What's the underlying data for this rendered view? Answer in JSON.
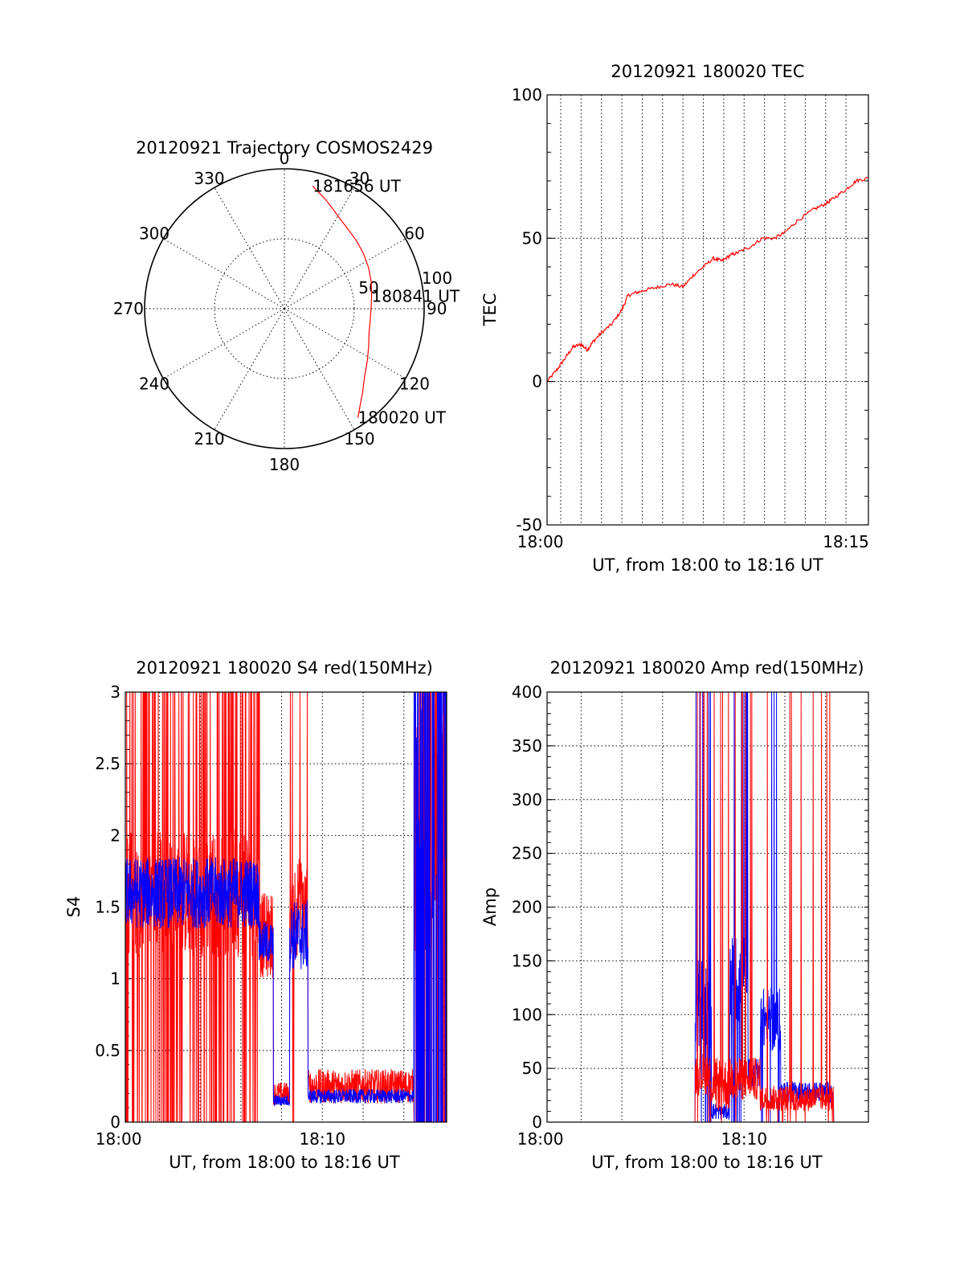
{
  "chart_data": [
    {
      "id": "trajectory",
      "type": "polar",
      "title": "20120921 Trajectory COSMOS2429",
      "azimuth_labels": [
        "0",
        "30",
        "60",
        "90",
        "120",
        "150",
        "180",
        "210",
        "240",
        "270",
        "300",
        "330"
      ],
      "radius_labels": [
        "50",
        "100"
      ],
      "rlim": [
        0,
        100
      ],
      "series_color": "#ff0000",
      "trajectory": {
        "azimuth": [
          13,
          16,
          20,
          25,
          31,
          38,
          46,
          55,
          64,
          73,
          82,
          90,
          98,
          106,
          114,
          122,
          130,
          137,
          142,
          146
        ],
        "radius": [
          90,
          87,
          84,
          80,
          76,
          73,
          71,
          69,
          67,
          65,
          63,
          62,
          62,
          63,
          66,
          70,
          75,
          82,
          88,
          94
        ]
      },
      "annotations": [
        {
          "text": "181656 UT",
          "azimuth": 13,
          "radius": 90
        },
        {
          "text": "180841 UT",
          "azimuth": 82,
          "radius": 63
        },
        {
          "text": "180020 UT",
          "azimuth": 146,
          "radius": 94
        }
      ]
    },
    {
      "id": "tec",
      "type": "line",
      "title": "20120921 180020 TEC",
      "xlabel": "UT, from 18:00 to 18:16 UT",
      "ylabel": "TEC",
      "xlim": [
        0.33,
        16.1
      ],
      "ylim": [
        -50,
        100
      ],
      "x_ticks": [
        {
          "value": 0,
          "label": "18:00"
        },
        {
          "value": 15,
          "label": "18:15"
        }
      ],
      "y_ticks": [
        -50,
        0,
        50,
        100
      ],
      "x_grid": [
        0.33,
        1,
        2,
        3,
        4,
        5,
        6,
        7,
        8,
        9,
        10,
        11,
        12,
        13,
        14,
        15
      ],
      "series": [
        {
          "color": "#ff0000",
          "x": [
            0.33,
            0.8,
            1.2,
            1.6,
            2.0,
            2.3,
            2.6,
            3.0,
            3.5,
            4.0,
            4.3,
            4.7,
            5.2,
            5.8,
            6.4,
            7.0,
            7.5,
            8.0,
            8.5,
            8.9,
            9.3,
            9.7,
            10.3,
            10.9,
            11.5,
            12.0,
            12.6,
            13.4,
            14.0,
            14.4,
            15.0,
            15.5,
            16.1
          ],
          "y": [
            0,
            4,
            8,
            12,
            13,
            11,
            14,
            17,
            20,
            25,
            30,
            31,
            32,
            33,
            34,
            33,
            37,
            40,
            43,
            42,
            44,
            45,
            47,
            50,
            50,
            52,
            56,
            60,
            62,
            64,
            67,
            70,
            71
          ]
        }
      ]
    },
    {
      "id": "s4",
      "type": "line",
      "title": "20120921 180020 S4 red(150MHz)",
      "xlabel": "UT, from 18:00 to 18:16 UT",
      "ylabel": "S4",
      "xlim": [
        0.33,
        16.1
      ],
      "ylim": [
        0,
        3
      ],
      "x_ticks": [
        {
          "value": 0,
          "label": "18:00"
        },
        {
          "value": 10,
          "label": "18:10"
        }
      ],
      "y_ticks": [
        0,
        0.5,
        1,
        1.5,
        2,
        2.5,
        3
      ],
      "y_tick_labels": [
        "0",
        "0.5",
        "1",
        "1.5",
        "2",
        "2.5",
        "3"
      ],
      "x_grid": [
        2,
        4,
        6,
        8,
        10,
        12,
        14
      ],
      "y_grid": [
        0.5,
        1,
        1.5,
        2,
        2.5
      ],
      "series": [
        {
          "color": "#ff0000",
          "segments": [
            {
              "x0": 0.33,
              "x1": 6.9,
              "mean": 1.6,
              "spread": 0.45,
              "spikes": 0.35
            },
            {
              "x0": 6.9,
              "x1": 7.6,
              "mean": 1.3,
              "spread": 0.3,
              "spikes": 0.05
            },
            {
              "x0": 7.6,
              "x1": 8.4,
              "mean": 0.2,
              "spread": 0.08,
              "spikes": 0.0
            },
            {
              "x0": 8.4,
              "x1": 9.3,
              "mean": 1.5,
              "spread": 0.35,
              "spikes": 0.1
            },
            {
              "x0": 9.3,
              "x1": 14.5,
              "mean": 0.25,
              "spread": 0.12,
              "spikes": 0.0
            },
            {
              "x0": 14.5,
              "x1": 16.1,
              "mean": 2.0,
              "spread": 1.0,
              "spikes": 0.6
            }
          ]
        },
        {
          "color": "#0000ff",
          "segments": [
            {
              "x0": 0.33,
              "x1": 6.9,
              "mean": 1.6,
              "spread": 0.25,
              "spikes": 0.0
            },
            {
              "x0": 6.9,
              "x1": 7.6,
              "mean": 1.25,
              "spread": 0.15,
              "spikes": 0.0
            },
            {
              "x0": 7.6,
              "x1": 8.4,
              "mean": 0.15,
              "spread": 0.04,
              "spikes": 0.0
            },
            {
              "x0": 8.4,
              "x1": 9.3,
              "mean": 1.3,
              "spread": 0.25,
              "spikes": 0.0
            },
            {
              "x0": 9.3,
              "x1": 14.5,
              "mean": 0.18,
              "spread": 0.05,
              "spikes": 0.0
            },
            {
              "x0": 14.5,
              "x1": 16.1,
              "mean": 2.2,
              "spread": 1.0,
              "spikes": 0.8
            }
          ]
        }
      ]
    },
    {
      "id": "amp",
      "type": "line",
      "title": "20120921 180020 Amp red(150MHz)",
      "xlabel": "UT, from 18:00 to 18:16 UT",
      "ylabel": "Amp",
      "xlim": [
        0.33,
        16.1
      ],
      "ylim": [
        0,
        400
      ],
      "x_ticks": [
        {
          "value": 0,
          "label": "18:00"
        },
        {
          "value": 10,
          "label": "18:10"
        }
      ],
      "y_ticks": [
        0,
        50,
        100,
        150,
        200,
        250,
        300,
        350,
        400
      ],
      "x_grid": [
        2,
        4,
        6,
        8,
        10,
        12,
        14
      ],
      "y_grid": [
        50,
        100,
        150,
        200,
        250,
        300,
        350
      ],
      "series": [
        {
          "color": "#0000ff",
          "segments": [
            {
              "x0": 0.33,
              "x1": 7.6,
              "mean": 0,
              "spread": 0,
              "spikes": 0
            },
            {
              "x0": 7.6,
              "x1": 8.4,
              "mean": 110,
              "spread": 45,
              "spikes": 0.2
            },
            {
              "x0": 8.4,
              "x1": 9.3,
              "mean": 10,
              "spread": 8,
              "spikes": 0
            },
            {
              "x0": 9.3,
              "x1": 10.2,
              "mean": 130,
              "spread": 45,
              "spikes": 0.2
            },
            {
              "x0": 10.2,
              "x1": 10.8,
              "mean": 45,
              "spread": 15,
              "spikes": 0
            },
            {
              "x0": 10.8,
              "x1": 11.8,
              "mean": 95,
              "spread": 30,
              "spikes": 0.1
            },
            {
              "x0": 11.8,
              "x1": 14.4,
              "mean": 28,
              "spread": 10,
              "spikes": 0
            },
            {
              "x0": 14.4,
              "x1": 16.1,
              "mean": 0,
              "spread": 0,
              "spikes": 0
            }
          ]
        },
        {
          "color": "#ff0000",
          "segments": [
            {
              "x0": 0.33,
              "x1": 7.6,
              "mean": 0,
              "spread": 0,
              "spikes": 0
            },
            {
              "x0": 7.6,
              "x1": 8.4,
              "mean": 45,
              "spread": 20,
              "spikes": 0.1
            },
            {
              "x0": 8.4,
              "x1": 9.3,
              "mean": 35,
              "spread": 25,
              "spikes": 0.1
            },
            {
              "x0": 9.3,
              "x1": 10.8,
              "mean": 40,
              "spread": 20,
              "spikes": 0.1
            },
            {
              "x0": 10.8,
              "x1": 14.4,
              "mean": 22,
              "spread": 12,
              "spikes": 0.05
            },
            {
              "x0": 14.4,
              "x1": 16.1,
              "mean": 0,
              "spread": 0,
              "spikes": 0
            }
          ]
        }
      ]
    }
  ]
}
